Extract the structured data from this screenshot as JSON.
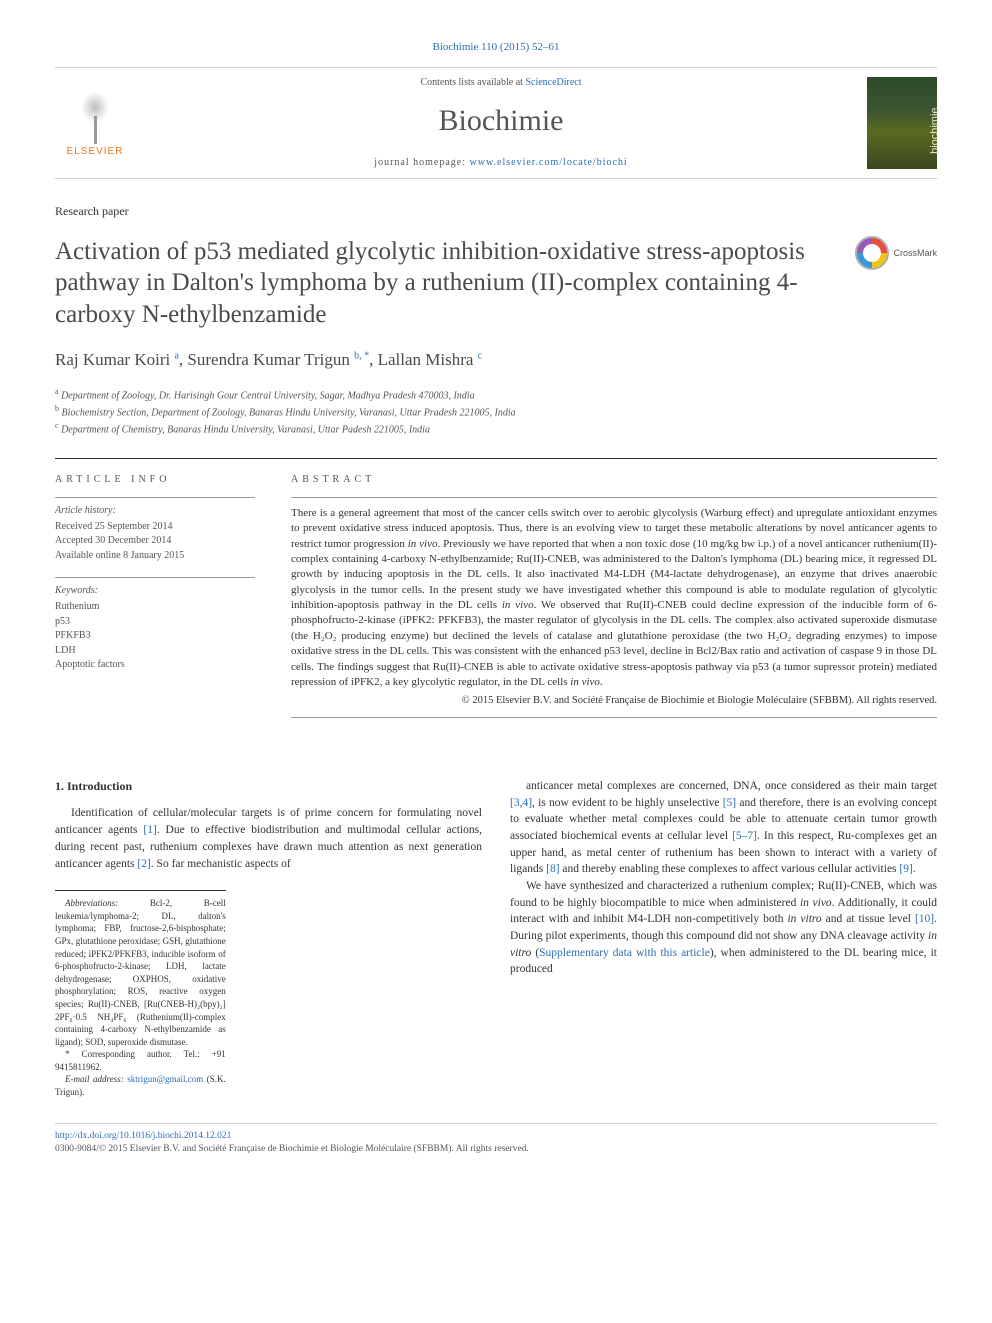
{
  "journal_ref": "Biochimie 110 (2015) 52–61",
  "header": {
    "contents_prefix": "Contents lists available at ",
    "contents_link": "ScienceDirect",
    "journal_name": "Biochimie",
    "homepage_prefix": "journal homepage: ",
    "homepage_url": "www.elsevier.com/locate/biochi",
    "publisher_label": "ELSEVIER"
  },
  "paper_type": "Research paper",
  "title": "Activation of p53 mediated glycolytic inhibition-oxidative stress-apoptosis pathway in Dalton's lymphoma by a ruthenium (II)-complex containing 4-carboxy N-ethylbenzamide",
  "crossmark_label": "CrossMark",
  "authors_html": "Raj Kumar Koiri <sup>a</sup>, Surendra Kumar Trigun <sup>b, *</sup>, Lallan Mishra <sup>c</sup>",
  "affiliations": [
    {
      "sup": "a",
      "text": "Department of Zoology, Dr. Harisingh Gour Central University, Sagar, Madhya Pradesh 470003, India"
    },
    {
      "sup": "b",
      "text": "Biochemistry Section, Department of Zoology, Banaras Hindu University, Varanasi, Uttar Pradesh 221005, India"
    },
    {
      "sup": "c",
      "text": "Department of Chemistry, Banaras Hindu University, Varanasi, Uttar Padesh 221005, India"
    }
  ],
  "article_info": {
    "heading": "article info",
    "history_label": "Article history:",
    "history": [
      "Received 25 September 2014",
      "Accepted 30 December 2014",
      "Available online 8 January 2015"
    ],
    "keywords_label": "Keywords:",
    "keywords": [
      "Ruthenium",
      "p53",
      "PFKFB3",
      "LDH",
      "Apoptotic factors"
    ]
  },
  "abstract": {
    "heading": "abstract",
    "body": "There is a general agreement that most of the cancer cells switch over to aerobic glycolysis (Warburg effect) and upregulate antioxidant enzymes to prevent oxidative stress induced apoptosis. Thus, there is an evolving view to target these metabolic alterations by novel anticancer agents to restrict tumor progression <em>in vivo</em>. Previously we have reported that when a non toxic dose (10 mg/kg bw i.p.) of a novel anticancer ruthenium(II)-complex containing 4-carboxy N-ethylbenzamide; Ru(II)-CNEB, was administered to the Dalton's lymphoma (DL) bearing mice, it regressed DL growth by inducing apoptosis in the DL cells. It also inactivated M4-LDH (M4-lactate dehydrogenase), an enzyme that drives anaerobic glycolysis in the tumor cells. In the present study we have investigated whether this compound is able to modulate regulation of glycolytic inhibition-apoptosis pathway in the DL cells <em>in vivo</em>. We observed that Ru(II)-CNEB could decline expression of the inducible form of 6-phosphofructo-2-kinase (iPFK2: PFKFB3), the master regulator of glycolysis in the DL cells. The complex also activated superoxide dismutase (the H₂O₂ producing enzyme) but declined the levels of catalase and glutathione peroxidase (the two H₂O₂ degrading enzymes) to impose oxidative stress in the DL cells. This was consistent with the enhanced p53 level, decline in Bcl2/Bax ratio and activation of caspase 9 in those DL cells. The findings suggest that Ru(II)-CNEB is able to activate oxidative stress-apoptosis pathway via p53 (a tumor supressor protein) mediated repression of iPFK2, a key glycolytic regulator, in the DL cells <em>in vivo</em>.",
    "copyright": "© 2015 Elsevier B.V. and Société Française de Biochimie et Biologie Moléculaire (SFBBM). All rights reserved."
  },
  "intro": {
    "heading": "1. Introduction",
    "left_para": "Identification of cellular/molecular targets is of prime concern for formulating novel anticancer agents <a>[1]</a>. Due to effective biodistribution and multimodal cellular actions, during recent past, ruthenium complexes have drawn much attention as next generation anticancer agents <a>[2]</a>. So far mechanistic aspects of",
    "right_para1": "anticancer metal complexes are concerned, DNA, once considered as their main target <a>[3,4]</a>, is now evident to be highly unselective <a>[5]</a> and therefore, there is an evolving concept to evaluate whether metal complexes could be able to attenuate certain tumor growth associated biochemical events at cellular level <a>[5–7]</a>. In this respect, Ru-complexes get an upper hand, as metal center of ruthenium has been shown to interact with a variety of ligands <a>[8]</a> and thereby enabling these complexes to affect various cellular activities <a>[9]</a>.",
    "right_para2": "We have synthesized and characterized a ruthenium complex; Ru(II)-CNEB, which was found to be highly biocompatible to mice when administered <em>in vivo</em>. Additionally, it could interact with and inhibit M4-LDH non-competitively both <em>in vitro</em> and at tissue level <a>[10]</a>. During pilot experiments, though this compound did not show any DNA cleavage activity <em>in vitro</em> (<a>Supplementary data with this article</a>), when administered to the DL bearing mice, it produced"
  },
  "footnotes": {
    "abbrev_label": "Abbreviations:",
    "abbrev": "Bcl-2, B-cell leukemia/lymphoma-2; DL, dalton's lymphoma; FBP, fructose-2,6-bisphosphate; GPx, glutathione peroxidase; GSH, glutathione reduced; iPFK2/PFKFB3, inducible isoform of 6-phosphofructo-2-kinase; LDH, lactate dehydrogenase; OXPHOS, oxidative phosphorylation; ROS, reactive oxygen species; Ru(II)-CNEB, [Ru(CNEB-H)₂(bpy)₂] 2PF₆·0.5 NH₄PF₆ (Ruthenium(II)-complex containing 4-carboxy N-ethylbenzamide as ligand); SOD, superoxide dismutase.",
    "corresponding": "* Corresponding author. Tel.: +91 9415811962.",
    "email_label": "E-mail address:",
    "email": "sktrigun@gmail.com",
    "email_name": "(S.K. Trigun)."
  },
  "footer": {
    "doi": "http://dx.doi.org/10.1016/j.biochi.2014.12.021",
    "issn_copyright": "0300-9084/© 2015 Elsevier B.V. and Société Française de Biochimie et Biologie Moléculaire (SFBBM). All rights reserved."
  },
  "colors": {
    "link": "#2a6db5",
    "text": "#333333",
    "muted": "#555555",
    "rule": "#cccccc",
    "orange": "#e67817"
  },
  "typography": {
    "body_pt": 11.5,
    "title_pt": 25,
    "journal_name_pt": 30,
    "abstract_pt": 11,
    "footnote_pt": 9
  }
}
